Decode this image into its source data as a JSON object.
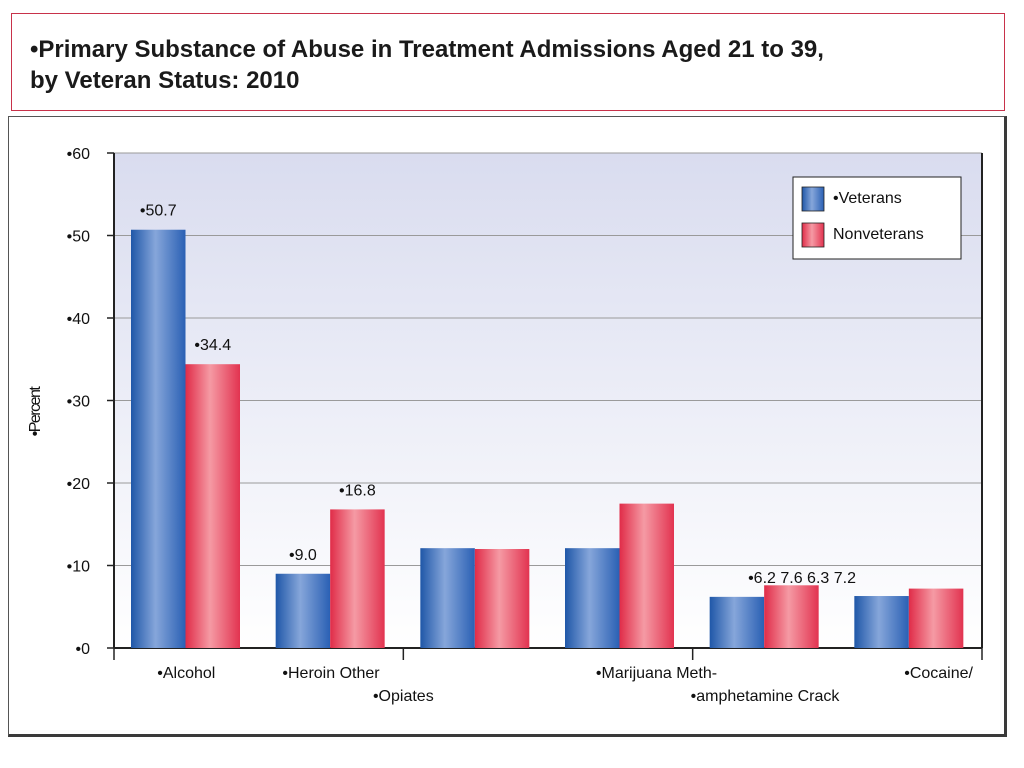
{
  "title": {
    "line1": "•Primary Substance of Abuse in Treatment Admissions Aged 21 to 39,",
    "line2": "by Veteran Status: 2010"
  },
  "colors": {
    "veterans": "#3b6fc0",
    "nonveterans": "#e64a5f"
  },
  "chart_data": {
    "type": "bar",
    "ylabel": "•Percent",
    "ylim": [
      0,
      60
    ],
    "yticks": [
      "•0",
      "•10",
      "•20",
      "•30",
      "•40",
      "•50",
      "•60"
    ],
    "grid": true,
    "legend_position": "top-right",
    "category_labels": [
      {
        "text": "•Alcohol",
        "row": 0,
        "group": 0
      },
      {
        "text": "•Heroin Other",
        "row": 0,
        "group": 1
      },
      {
        "text": "•Opiates",
        "row": 1,
        "group": 1.5
      },
      {
        "text": "•Marijuana Meth-",
        "row": 0,
        "group": 3.25
      },
      {
        "text": "•amphetamine Crack",
        "row": 1,
        "group": 4
      },
      {
        "text": "•Cocaine/",
        "row": 0,
        "group": 5.2
      }
    ],
    "categories": [
      "Alcohol",
      "Heroin",
      "Other Opiates",
      "Marijuana",
      "Methamphetamine",
      "Cocaine/Crack"
    ],
    "series": [
      {
        "name": "•Veterans",
        "values": [
          50.7,
          9.0,
          12.1,
          12.1,
          6.2,
          6.3
        ]
      },
      {
        "name": "Nonveterans",
        "values": [
          34.4,
          16.8,
          12.0,
          17.5,
          7.6,
          7.2
        ]
      }
    ],
    "data_labels": [
      {
        "text": "•50.7",
        "group": 0,
        "series": 0
      },
      {
        "text": "•34.4",
        "group": 0,
        "series": 1
      },
      {
        "text": "•9.0",
        "group": 1,
        "series": 0
      },
      {
        "text": "•16.8",
        "group": 1,
        "series": 1
      },
      {
        "text": "•6.2 7.6 6.3 7.2",
        "group": 4.45,
        "series": 0
      }
    ]
  }
}
